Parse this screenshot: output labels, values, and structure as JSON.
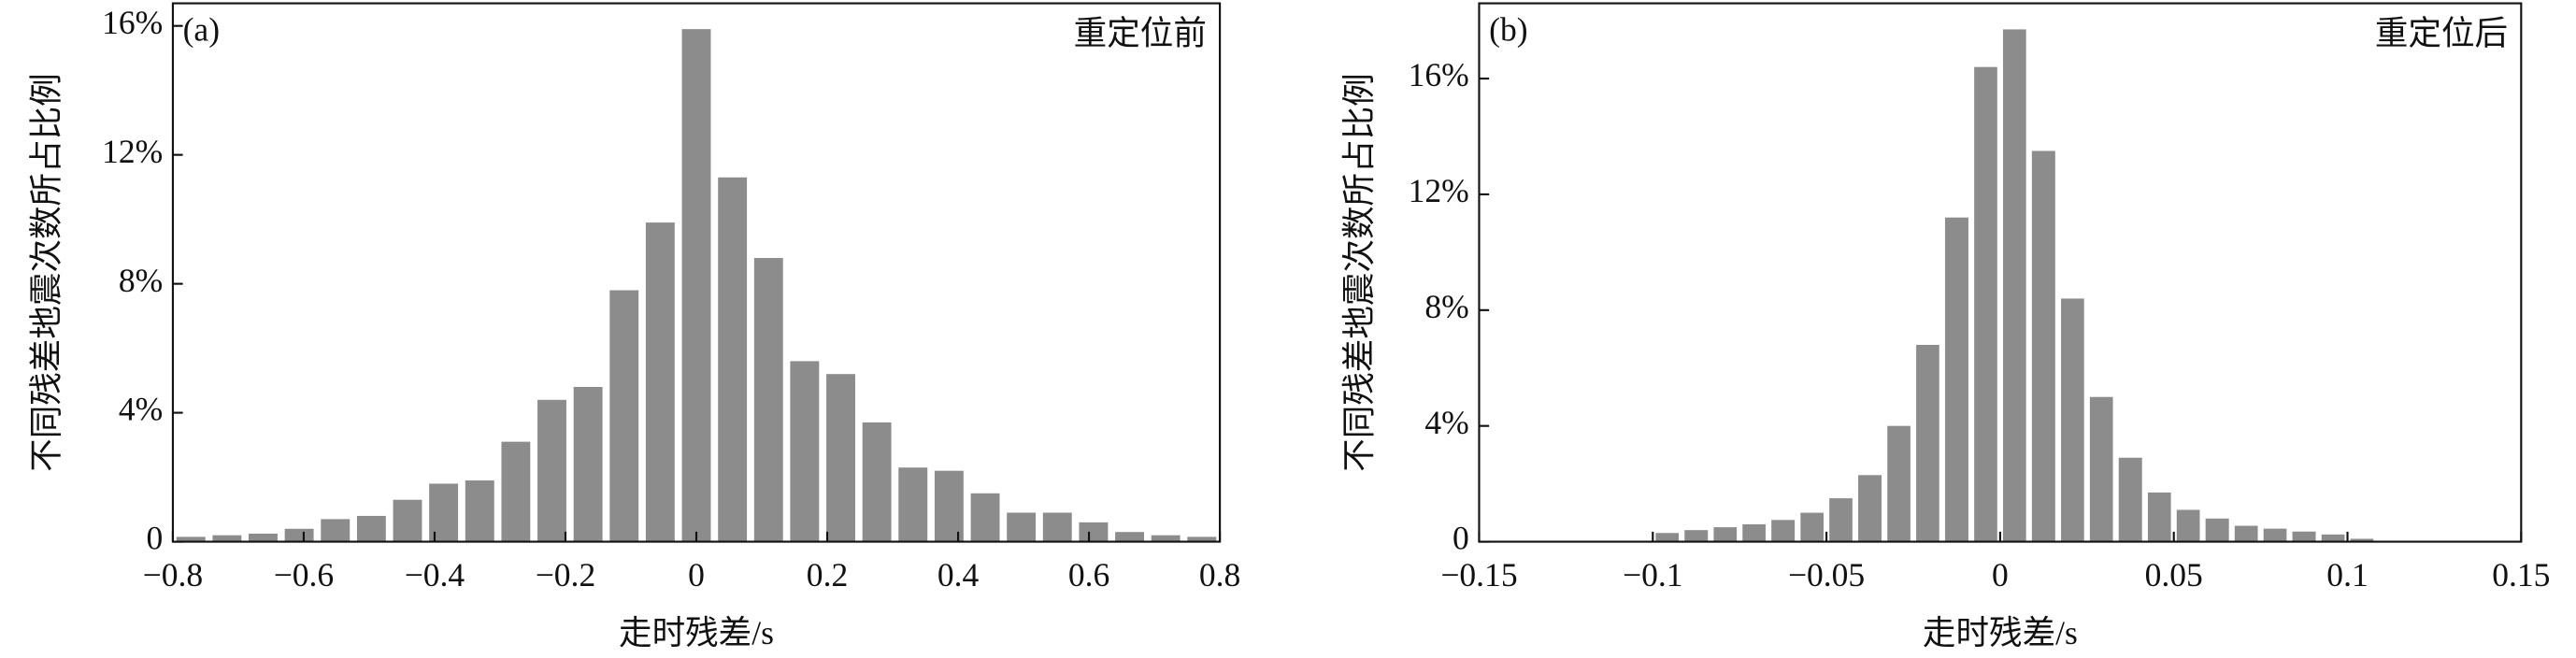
{
  "chart_data": [
    {
      "type": "histogram",
      "panel_label": "(a)",
      "annotation": "重定位前",
      "xlabel": "走时残差/s",
      "ylabel": "不同残差地震次数所占比例",
      "color": "#8c8c8c",
      "bins": [
        -0.8,
        -0.7448,
        -0.6897,
        -0.6345,
        -0.5793,
        -0.5241,
        -0.469,
        -0.4138,
        -0.3586,
        -0.3034,
        -0.2483,
        -0.1931,
        -0.1379,
        -0.0828,
        -0.0276,
        0.0276,
        0.0828,
        0.1379,
        0.1931,
        0.2483,
        0.3034,
        0.3586,
        0.4138,
        0.469,
        0.5241,
        0.5793,
        0.6345,
        0.6897,
        0.7448,
        0.8
      ],
      "values": [
        0.15,
        0.2,
        0.25,
        0.4,
        0.7,
        0.8,
        1.3,
        1.8,
        1.9,
        3.1,
        4.4,
        4.8,
        7.8,
        9.9,
        15.9,
        11.3,
        8.8,
        5.6,
        5.2,
        3.7,
        2.3,
        2.2,
        1.5,
        0.9,
        0.9,
        0.6,
        0.3,
        0.2,
        0.15
      ],
      "xlim": [
        -0.8,
        0.8
      ],
      "xticks": [
        {
          "value": -0.8,
          "label": "−0.8"
        },
        {
          "value": -0.6,
          "label": "−0.6"
        },
        {
          "value": -0.4,
          "label": "−0.4"
        },
        {
          "value": -0.2,
          "label": "−0.2"
        },
        0,
        0.2,
        0.4,
        0.6,
        0.8
      ],
      "ylim": [
        0,
        16.7
      ],
      "yticks": [
        0,
        {
          "value": 4,
          "label": "4%"
        },
        {
          "value": 8,
          "label": "8%"
        },
        {
          "value": 12,
          "label": "12%"
        },
        {
          "value": 16,
          "label": "16%"
        }
      ]
    },
    {
      "type": "histogram",
      "panel_label": "(b)",
      "annotation": "重定位后",
      "xlabel": "走时残差/s",
      "ylabel": "不同残差地震次数所占比例",
      "color": "#8c8c8c",
      "bins": [
        -0.1,
        -0.0917,
        -0.0833,
        -0.075,
        -0.0667,
        -0.0583,
        -0.05,
        -0.0417,
        -0.0333,
        -0.025,
        -0.0167,
        -0.0083,
        0,
        0.0083,
        0.0167,
        0.025,
        0.0333,
        0.0417,
        0.05,
        0.0583,
        0.0667,
        0.075,
        0.0833,
        0.0917,
        0.1,
        0.1083
      ],
      "values": [
        0.3,
        0.4,
        0.5,
        0.6,
        0.75,
        1.0,
        1.5,
        2.3,
        4.0,
        6.8,
        11.2,
        16.4,
        17.7,
        13.5,
        8.4,
        5.0,
        2.9,
        1.7,
        1.1,
        0.8,
        0.55,
        0.45,
        0.35,
        0.25,
        0.1
      ],
      "xlim": [
        -0.15,
        0.15
      ],
      "xticks": [
        {
          "value": -0.15,
          "label": "−0.15"
        },
        {
          "value": -0.1,
          "label": "−0.1"
        },
        {
          "value": -0.05,
          "label": "−0.05"
        },
        0,
        0.05,
        0.1,
        0.15
      ],
      "ylim": [
        0,
        18.6
      ],
      "yticks": [
        0,
        {
          "value": 4,
          "label": "4%"
        },
        {
          "value": 8,
          "label": "8%"
        },
        {
          "value": 12,
          "label": "12%"
        },
        {
          "value": 16,
          "label": "16%"
        }
      ]
    }
  ]
}
